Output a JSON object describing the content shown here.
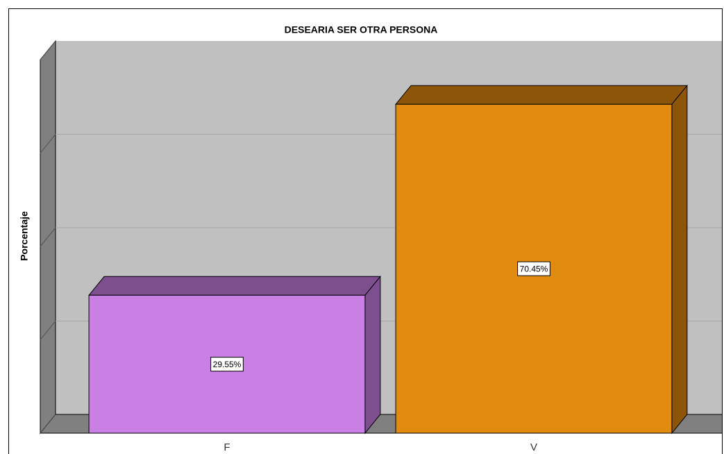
{
  "chart_data": {
    "type": "bar3d",
    "title": "DESEARIA SER OTRA PERSONA",
    "y_label": "Porcentaje",
    "categories": [
      "F",
      "V"
    ],
    "values": [
      29.55,
      70.45
    ],
    "value_labels": [
      "29.55%",
      "70.45%"
    ],
    "colors": [
      "#c97fe4",
      "#e08a10"
    ],
    "side_colors": [
      "#7d4f8f",
      "#8c5507"
    ],
    "ylim": [
      0,
      80
    ],
    "yticks": [
      0,
      20,
      40,
      60,
      80
    ],
    "grid": true
  }
}
